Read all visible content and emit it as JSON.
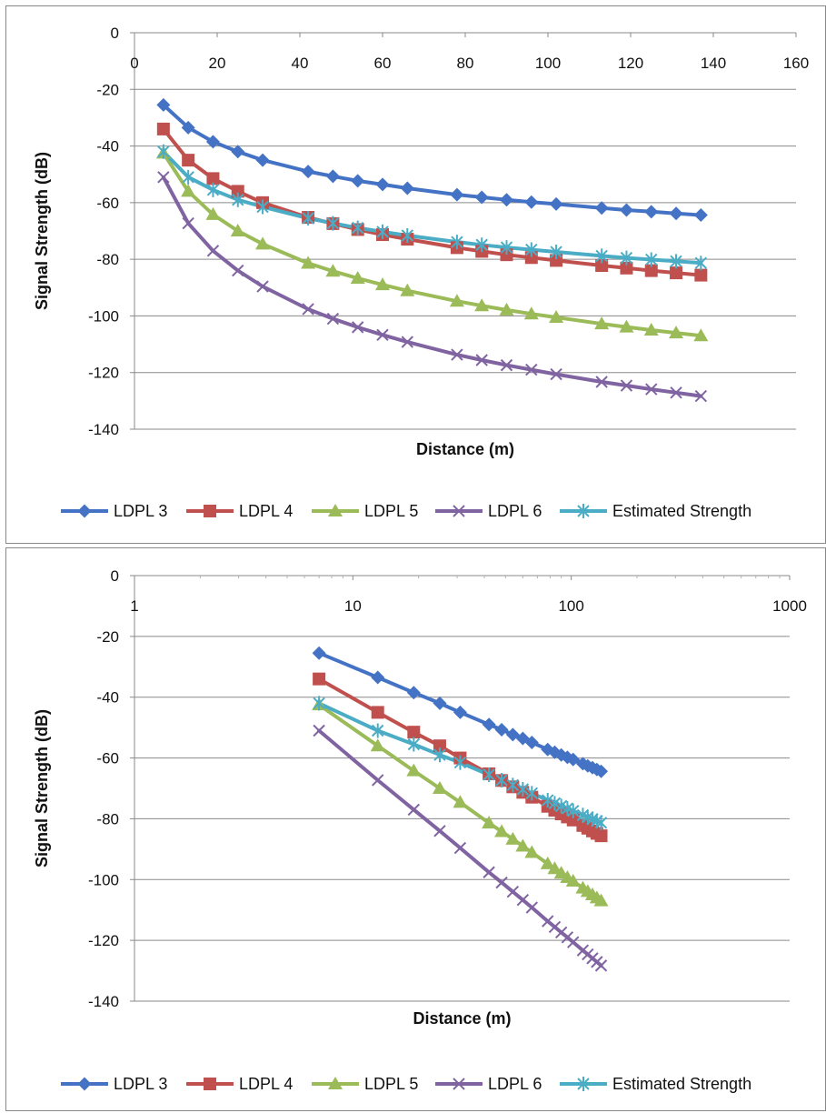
{
  "chart_data": [
    {
      "type": "line",
      "xlabel": "Distance (m)",
      "ylabel": "Signal Strength (dB)",
      "xscale": "linear",
      "xlim": [
        0,
        160
      ],
      "ylim": [
        -140,
        0
      ],
      "xticks": [
        0,
        20,
        40,
        60,
        80,
        100,
        120,
        140,
        160
      ],
      "yticks": [
        0,
        -20,
        -40,
        -60,
        -80,
        -100,
        -120,
        -140
      ],
      "grid": "horizontal",
      "legend": "bottom",
      "x": [
        7,
        13,
        19,
        25,
        31,
        42,
        48,
        54,
        60,
        66,
        78,
        84,
        90,
        96,
        102,
        113,
        119,
        125,
        131,
        137
      ],
      "series": [
        {
          "name": "LDPL 3",
          "color": "#4472C4",
          "marker": "diamond",
          "values": [
            -25.5,
            -33.5,
            -38.5,
            -42,
            -45,
            -49,
            -50.7,
            -52.3,
            -53.6,
            -54.9,
            -57.2,
            -58.1,
            -59,
            -59.8,
            -60.5,
            -61.9,
            -62.6,
            -63.2,
            -63.8,
            -64.4
          ]
        },
        {
          "name": "LDPL 4",
          "color": "#C0504D",
          "marker": "square",
          "values": [
            -34,
            -45,
            -51.5,
            -56,
            -60,
            -65.2,
            -67.4,
            -69.5,
            -71.3,
            -72.9,
            -75.9,
            -77.2,
            -78.4,
            -79.4,
            -80.4,
            -82.2,
            -83.1,
            -84,
            -84.8,
            -85.6
          ]
        },
        {
          "name": "LDPL 5",
          "color": "#9BBB59",
          "marker": "triangle",
          "values": [
            -42.5,
            -56,
            -64.2,
            -70,
            -74.6,
            -81.4,
            -84.2,
            -86.7,
            -89,
            -91.1,
            -94.8,
            -96.4,
            -97.9,
            -99.3,
            -100.5,
            -102.8,
            -103.9,
            -105,
            -106,
            -107
          ]
        },
        {
          "name": "LDPL 6",
          "color": "#8064A2",
          "marker": "x",
          "values": [
            -51,
            -67.3,
            -77,
            -84,
            -89.6,
            -97.6,
            -101,
            -104,
            -106.7,
            -109.2,
            -113.7,
            -115.6,
            -117.4,
            -119,
            -120.6,
            -123.3,
            -124.6,
            -125.9,
            -127.1,
            -128.3
          ]
        },
        {
          "name": "Estimated Strength",
          "color": "#4BACC6",
          "marker": "asterisk",
          "values": [
            -42,
            -51,
            -55.5,
            -59,
            -61.5,
            -65.5,
            -67.3,
            -68.9,
            -70.3,
            -71.6,
            -73.9,
            -74.9,
            -75.8,
            -76.6,
            -77.4,
            -78.8,
            -79.5,
            -80.1,
            -80.7,
            -81.3
          ]
        }
      ]
    },
    {
      "type": "line",
      "xlabel": "Distance (m)",
      "ylabel": "Signal Strength (dB)",
      "xscale": "log",
      "xlim": [
        1,
        1000
      ],
      "ylim": [
        -140,
        0
      ],
      "xticks": [
        1,
        10,
        100,
        1000
      ],
      "yticks": [
        0,
        -20,
        -40,
        -60,
        -80,
        -100,
        -120,
        -140
      ],
      "grid": "horizontal",
      "legend": "bottom",
      "x": [
        7,
        13,
        19,
        25,
        31,
        42,
        48,
        54,
        60,
        66,
        78,
        84,
        90,
        96,
        102,
        113,
        119,
        125,
        131,
        137
      ],
      "series": [
        {
          "name": "LDPL 3",
          "color": "#4472C4",
          "marker": "diamond",
          "values": [
            -25.5,
            -33.5,
            -38.5,
            -42,
            -45,
            -49,
            -50.7,
            -52.3,
            -53.6,
            -54.9,
            -57.2,
            -58.1,
            -59,
            -59.8,
            -60.5,
            -61.9,
            -62.6,
            -63.2,
            -63.8,
            -64.4
          ]
        },
        {
          "name": "LDPL 4",
          "color": "#C0504D",
          "marker": "square",
          "values": [
            -34,
            -45,
            -51.5,
            -56,
            -60,
            -65.2,
            -67.4,
            -69.5,
            -71.3,
            -72.9,
            -75.9,
            -77.2,
            -78.4,
            -79.4,
            -80.4,
            -82.2,
            -83.1,
            -84,
            -84.8,
            -85.6
          ]
        },
        {
          "name": "LDPL 5",
          "color": "#9BBB59",
          "marker": "triangle",
          "values": [
            -42.5,
            -56,
            -64.2,
            -70,
            -74.6,
            -81.4,
            -84.2,
            -86.7,
            -89,
            -91.1,
            -94.8,
            -96.4,
            -97.9,
            -99.3,
            -100.5,
            -102.8,
            -103.9,
            -105,
            -106,
            -107
          ]
        },
        {
          "name": "LDPL 6",
          "color": "#8064A2",
          "marker": "x",
          "values": [
            -51,
            -67.3,
            -77,
            -84,
            -89.6,
            -97.6,
            -101,
            -104,
            -106.7,
            -109.2,
            -113.7,
            -115.6,
            -117.4,
            -119,
            -120.6,
            -123.3,
            -124.6,
            -125.9,
            -127.1,
            -128.3
          ]
        },
        {
          "name": "Estimated Strength",
          "color": "#4BACC6",
          "marker": "asterisk",
          "values": [
            -42,
            -51,
            -55.5,
            -59,
            -61.5,
            -65.5,
            -67.3,
            -68.9,
            -70.3,
            -71.6,
            -73.9,
            -74.9,
            -75.8,
            -76.6,
            -77.4,
            -78.8,
            -79.5,
            -80.1,
            -80.7,
            -81.3
          ]
        }
      ]
    }
  ]
}
